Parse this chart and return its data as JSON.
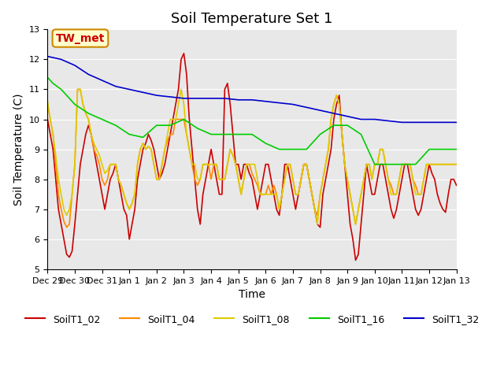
{
  "title": "Soil Temperature Set 1",
  "xlabel": "Time",
  "ylabel": "Soil Temperature (C)",
  "ylim": [
    5.0,
    13.0
  ],
  "yticks": [
    5.0,
    6.0,
    7.0,
    8.0,
    9.0,
    10.0,
    11.0,
    12.0,
    13.0
  ],
  "background_color": "#e8e8e8",
  "annotation_text": "TW_met",
  "annotation_color": "#cc0000",
  "annotation_bg": "#ffffcc",
  "annotation_border": "#cc8800",
  "series": {
    "SoilT1_02": {
      "color": "#cc0000",
      "x": [
        0,
        0.1,
        0.2,
        0.3,
        0.4,
        0.5,
        0.6,
        0.7,
        0.8,
        0.9,
        1.0,
        1.1,
        1.2,
        1.3,
        1.4,
        1.5,
        1.6,
        1.7,
        1.8,
        1.9,
        2.0,
        2.1,
        2.2,
        2.3,
        2.4,
        2.5,
        2.6,
        2.7,
        2.8,
        2.9,
        3.0,
        3.1,
        3.2,
        3.3,
        3.4,
        3.5,
        3.6,
        3.7,
        3.8,
        3.9,
        4.0,
        4.1,
        4.2,
        4.3,
        4.4,
        4.5,
        4.6,
        4.7,
        4.8,
        4.9,
        5.0,
        5.1,
        5.2,
        5.3,
        5.4,
        5.5,
        5.6,
        5.7,
        5.8,
        5.9,
        6.0,
        6.1,
        6.2,
        6.3,
        6.4,
        6.5,
        6.6,
        6.7,
        6.8,
        6.9,
        7.0,
        7.1,
        7.2,
        7.3,
        7.4,
        7.5,
        7.6,
        7.7,
        7.8,
        7.9,
        8.0,
        8.1,
        8.2,
        8.3,
        8.4,
        8.5,
        8.6,
        8.7,
        8.8,
        8.9,
        9.0,
        9.1,
        9.2,
        9.3,
        9.4,
        9.5,
        9.6,
        9.7,
        9.8,
        9.9,
        10.0,
        10.1,
        10.2,
        10.3,
        10.4,
        10.5,
        10.6,
        10.7,
        10.8,
        10.9,
        11.0,
        11.1,
        11.2,
        11.3,
        11.4,
        11.5,
        11.6,
        11.7,
        11.8,
        11.9,
        12.0,
        12.1,
        12.2,
        12.3,
        12.4,
        12.5,
        12.6,
        12.7,
        12.8,
        12.9,
        13.0,
        13.1,
        13.2,
        13.3,
        13.4,
        13.5,
        13.6,
        13.7,
        13.8,
        13.9,
        14.0,
        14.1,
        14.2,
        14.3,
        14.4,
        14.5,
        14.6,
        14.7,
        14.8,
        14.9,
        15.0
      ],
      "y": [
        10.0,
        9.5,
        9.0,
        8.0,
        7.0,
        6.5,
        6.0,
        5.5,
        5.4,
        5.6,
        6.5,
        7.5,
        8.5,
        9.0,
        9.5,
        9.8,
        9.5,
        9.0,
        8.5,
        8.0,
        7.5,
        7.0,
        7.5,
        8.0,
        8.2,
        8.5,
        8.0,
        7.5,
        7.0,
        6.8,
        6.0,
        6.5,
        7.0,
        8.0,
        8.5,
        9.0,
        9.2,
        9.5,
        9.3,
        9.0,
        8.5,
        8.0,
        8.2,
        8.5,
        9.0,
        9.5,
        10.0,
        10.5,
        11.0,
        12.0,
        12.2,
        11.5,
        10.0,
        9.0,
        8.0,
        7.0,
        6.5,
        7.5,
        8.0,
        8.5,
        9.0,
        8.5,
        8.0,
        7.5,
        7.5,
        11.0,
        11.2,
        10.5,
        9.5,
        8.5,
        8.5,
        8.0,
        8.5,
        8.5,
        8.2,
        8.0,
        7.5,
        7.0,
        7.5,
        8.0,
        8.5,
        8.5,
        8.0,
        7.5,
        7.0,
        6.8,
        7.5,
        8.5,
        8.5,
        8.0,
        7.5,
        7.0,
        7.5,
        8.0,
        8.5,
        8.5,
        8.0,
        7.5,
        7.0,
        6.5,
        6.4,
        7.5,
        8.0,
        8.5,
        9.0,
        10.0,
        10.5,
        10.8,
        9.5,
        8.5,
        7.5,
        6.5,
        6.0,
        5.3,
        5.5,
        6.5,
        7.5,
        8.5,
        8.0,
        7.5,
        7.5,
        8.0,
        8.5,
        8.5,
        8.0,
        7.5,
        7.0,
        6.7,
        7.0,
        7.5,
        8.0,
        8.5,
        8.5,
        8.0,
        7.5,
        7.0,
        6.8,
        7.0,
        7.5,
        8.0,
        8.5,
        8.2,
        8.0,
        7.5,
        7.2,
        7.0,
        6.9,
        7.5,
        8.0,
        8.0,
        7.8
      ]
    },
    "SoilT1_04": {
      "color": "#ff8800",
      "x": [
        0,
        0.1,
        0.2,
        0.3,
        0.4,
        0.5,
        0.6,
        0.7,
        0.8,
        0.9,
        1.0,
        1.1,
        1.2,
        1.3,
        1.4,
        1.5,
        1.6,
        1.7,
        1.8,
        1.9,
        2.0,
        2.1,
        2.2,
        2.3,
        2.4,
        2.5,
        2.6,
        2.7,
        2.8,
        2.9,
        3.0,
        3.1,
        3.2,
        3.3,
        3.4,
        3.5,
        3.6,
        3.7,
        3.8,
        3.9,
        4.0,
        4.1,
        4.2,
        4.3,
        4.4,
        4.5,
        4.6,
        4.7,
        4.8,
        4.9,
        5.0,
        5.1,
        5.2,
        5.3,
        5.4,
        5.5,
        5.6,
        5.7,
        5.8,
        5.9,
        6.0,
        6.1,
        6.2,
        6.3,
        6.4,
        6.5,
        6.6,
        6.7,
        6.8,
        6.9,
        7.0,
        7.1,
        7.2,
        7.3,
        7.4,
        7.5,
        7.6,
        7.7,
        7.8,
        7.9,
        8.0,
        8.1,
        8.2,
        8.3,
        8.4,
        8.5,
        8.6,
        8.7,
        8.8,
        8.9,
        9.0,
        9.1,
        9.2,
        9.3,
        9.4,
        9.5,
        9.6,
        9.7,
        9.8,
        9.9,
        10.0,
        10.1,
        10.2,
        10.3,
        10.4,
        10.5,
        10.6,
        10.7,
        10.8,
        10.9,
        11.0,
        11.1,
        11.2,
        11.3,
        11.4,
        11.5,
        11.6,
        11.7,
        11.8,
        11.9,
        12.0,
        12.1,
        12.2,
        12.3,
        12.4,
        12.5,
        12.6,
        12.7,
        12.8,
        12.9,
        13.0,
        13.1,
        13.2,
        13.3,
        13.4,
        13.5,
        13.6,
        13.7,
        13.8,
        13.9,
        14.0,
        14.1,
        14.2,
        14.3,
        14.4,
        14.5,
        14.6,
        14.7,
        14.8,
        14.9,
        15.0
      ],
      "y": [
        10.5,
        10.0,
        9.5,
        8.5,
        7.5,
        7.0,
        6.6,
        6.4,
        6.5,
        7.5,
        8.5,
        11.0,
        11.0,
        10.5,
        10.2,
        10.0,
        9.5,
        9.0,
        8.8,
        8.5,
        8.0,
        7.8,
        8.0,
        8.5,
        8.5,
        8.5,
        8.0,
        7.8,
        7.5,
        7.2,
        7.0,
        7.2,
        7.5,
        8.5,
        9.0,
        9.2,
        9.0,
        9.1,
        9.0,
        8.5,
        8.0,
        8.0,
        8.5,
        9.0,
        9.3,
        9.5,
        9.5,
        10.0,
        10.0,
        10.0,
        10.0,
        9.5,
        9.0,
        8.5,
        8.0,
        7.8,
        8.0,
        8.5,
        8.5,
        8.5,
        8.0,
        8.5,
        8.5,
        8.0,
        8.0,
        8.0,
        8.5,
        9.0,
        8.8,
        8.5,
        8.0,
        7.5,
        8.0,
        8.5,
        8.5,
        8.2,
        8.0,
        7.8,
        7.5,
        7.5,
        7.5,
        7.8,
        7.5,
        7.8,
        7.5,
        7.0,
        7.5,
        8.0,
        8.5,
        8.5,
        8.0,
        7.5,
        7.5,
        8.0,
        8.5,
        8.5,
        8.0,
        7.5,
        7.0,
        6.8,
        7.5,
        8.0,
        8.5,
        9.0,
        10.0,
        10.5,
        10.8,
        10.5,
        9.5,
        8.5,
        8.0,
        7.5,
        7.0,
        6.5,
        7.0,
        7.5,
        8.0,
        8.5,
        8.5,
        8.0,
        8.5,
        8.5,
        9.0,
        9.0,
        8.5,
        8.0,
        7.8,
        7.5,
        7.5,
        8.0,
        8.5,
        8.5,
        8.5,
        8.5,
        8.0,
        7.8,
        7.5,
        7.5,
        8.0,
        8.5,
        8.5,
        8.5,
        8.5,
        8.5,
        8.5,
        8.5,
        8.5,
        8.5,
        8.5,
        8.5,
        8.5
      ]
    },
    "SoilT1_08": {
      "color": "#ddcc00",
      "x": [
        0,
        0.1,
        0.2,
        0.3,
        0.4,
        0.5,
        0.6,
        0.7,
        0.8,
        0.9,
        1.0,
        1.1,
        1.2,
        1.3,
        1.4,
        1.5,
        1.6,
        1.7,
        1.8,
        1.9,
        2.0,
        2.1,
        2.2,
        2.3,
        2.4,
        2.5,
        2.6,
        2.7,
        2.8,
        2.9,
        3.0,
        3.1,
        3.2,
        3.3,
        3.4,
        3.5,
        3.6,
        3.7,
        3.8,
        3.9,
        4.0,
        4.1,
        4.2,
        4.3,
        4.4,
        4.5,
        4.6,
        4.7,
        4.8,
        4.9,
        5.0,
        5.1,
        5.2,
        5.3,
        5.4,
        5.5,
        5.6,
        5.7,
        5.8,
        5.9,
        6.0,
        6.1,
        6.2,
        6.3,
        6.4,
        6.5,
        6.6,
        6.7,
        6.8,
        6.9,
        7.0,
        7.1,
        7.2,
        7.3,
        7.4,
        7.5,
        7.6,
        7.7,
        7.8,
        7.9,
        8.0,
        8.1,
        8.2,
        8.3,
        8.4,
        8.5,
        8.6,
        8.7,
        8.8,
        8.9,
        9.0,
        9.1,
        9.2,
        9.3,
        9.4,
        9.5,
        9.6,
        9.7,
        9.8,
        9.9,
        10.0,
        10.1,
        10.2,
        10.3,
        10.4,
        10.5,
        10.6,
        10.7,
        10.8,
        10.9,
        11.0,
        11.1,
        11.2,
        11.3,
        11.4,
        11.5,
        11.6,
        11.7,
        11.8,
        11.9,
        12.0,
        12.1,
        12.2,
        12.3,
        12.4,
        12.5,
        12.6,
        12.7,
        12.8,
        12.9,
        13.0,
        13.1,
        13.2,
        13.3,
        13.4,
        13.5,
        13.6,
        13.7,
        13.8,
        13.9,
        14.0,
        14.1,
        14.2,
        14.3,
        14.4,
        14.5,
        14.6,
        14.7,
        14.8,
        14.9,
        15.0
      ],
      "y": [
        10.6,
        10.0,
        9.5,
        8.8,
        8.0,
        7.5,
        7.0,
        6.8,
        7.0,
        7.5,
        8.5,
        11.0,
        11.0,
        10.5,
        10.2,
        10.0,
        9.5,
        9.2,
        9.0,
        8.8,
        8.5,
        8.2,
        8.3,
        8.5,
        8.5,
        8.5,
        8.0,
        7.8,
        7.5,
        7.2,
        7.0,
        7.2,
        7.5,
        8.5,
        9.0,
        9.2,
        9.0,
        9.1,
        9.0,
        8.5,
        8.0,
        8.0,
        8.5,
        9.0,
        9.5,
        10.0,
        10.0,
        10.0,
        10.5,
        11.0,
        10.5,
        9.5,
        9.0,
        8.5,
        8.5,
        8.0,
        8.0,
        8.5,
        8.5,
        8.5,
        8.5,
        8.5,
        8.5,
        8.0,
        8.0,
        8.0,
        8.5,
        9.0,
        8.8,
        8.5,
        8.0,
        7.5,
        8.0,
        8.5,
        8.5,
        8.5,
        8.5,
        8.0,
        7.5,
        7.5,
        7.5,
        7.5,
        7.5,
        7.5,
        7.5,
        7.0,
        7.5,
        8.0,
        8.5,
        8.5,
        8.0,
        7.5,
        7.5,
        8.0,
        8.5,
        8.5,
        8.0,
        7.5,
        7.0,
        6.5,
        7.5,
        8.0,
        8.5,
        9.0,
        10.0,
        10.5,
        10.8,
        10.5,
        9.5,
        8.5,
        8.0,
        7.5,
        7.0,
        6.5,
        7.0,
        7.5,
        8.0,
        8.5,
        8.5,
        8.0,
        8.5,
        8.5,
        9.0,
        9.0,
        8.5,
        8.0,
        7.5,
        7.5,
        7.5,
        8.0,
        8.5,
        8.5,
        8.5,
        8.5,
        8.0,
        7.5,
        7.5,
        7.5,
        8.0,
        8.5,
        8.5,
        8.5,
        8.5,
        8.5,
        8.5,
        8.5,
        8.5,
        8.5,
        8.5,
        8.5,
        8.5
      ]
    },
    "SoilT1_16": {
      "color": "#00cc00",
      "x": [
        0,
        0.2,
        0.5,
        1.0,
        1.5,
        2.0,
        2.5,
        3.0,
        3.5,
        4.0,
        4.5,
        5.0,
        5.5,
        6.0,
        6.5,
        7.0,
        7.5,
        8.0,
        8.5,
        9.0,
        9.5,
        10.0,
        10.5,
        11.0,
        11.5,
        12.0,
        12.5,
        13.0,
        13.5,
        14.0,
        14.5,
        15.0
      ],
      "y": [
        11.4,
        11.2,
        11.0,
        10.5,
        10.2,
        10.0,
        9.8,
        9.5,
        9.4,
        9.8,
        9.8,
        10.0,
        9.7,
        9.5,
        9.5,
        9.5,
        9.5,
        9.2,
        9.0,
        9.0,
        9.0,
        9.5,
        9.8,
        9.8,
        9.5,
        8.5,
        8.5,
        8.5,
        8.5,
        9.0,
        9.0,
        9.0
      ]
    },
    "SoilT1_32": {
      "color": "#0000cc",
      "x": [
        0,
        0.5,
        1.0,
        1.5,
        2.0,
        2.5,
        3.0,
        3.5,
        4.0,
        4.5,
        5.0,
        5.5,
        6.0,
        6.5,
        7.0,
        7.5,
        8.0,
        8.5,
        9.0,
        9.5,
        10.0,
        10.5,
        11.0,
        11.5,
        12.0,
        12.5,
        13.0,
        13.5,
        14.0,
        14.5,
        15.0
      ],
      "y": [
        12.1,
        12.0,
        11.8,
        11.5,
        11.3,
        11.1,
        11.0,
        10.9,
        10.8,
        10.75,
        10.7,
        10.7,
        10.7,
        10.7,
        10.65,
        10.65,
        10.6,
        10.55,
        10.5,
        10.4,
        10.3,
        10.2,
        10.1,
        10.0,
        10.0,
        9.95,
        9.9,
        9.9,
        9.9,
        9.9,
        9.9
      ]
    }
  },
  "xtick_positions": [
    0,
    1,
    2,
    3,
    4,
    5,
    6,
    7,
    8,
    9,
    10,
    11,
    12,
    13,
    14,
    15
  ],
  "xtick_labels": [
    "Dec 29",
    "Dec 30",
    "Dec 31",
    "Jan 1",
    "Jan 2",
    "Jan 3",
    "Jan 4",
    "Jan 5",
    "Jan 6",
    "Jan 7",
    "Jan 8",
    "Jan 9",
    "Jan 10",
    "Jan 11",
    "Jan 12",
    "Jan 13"
  ],
  "legend_order": [
    "SoilT1_02",
    "SoilT1_04",
    "SoilT1_08",
    "SoilT1_16",
    "SoilT1_32"
  ]
}
